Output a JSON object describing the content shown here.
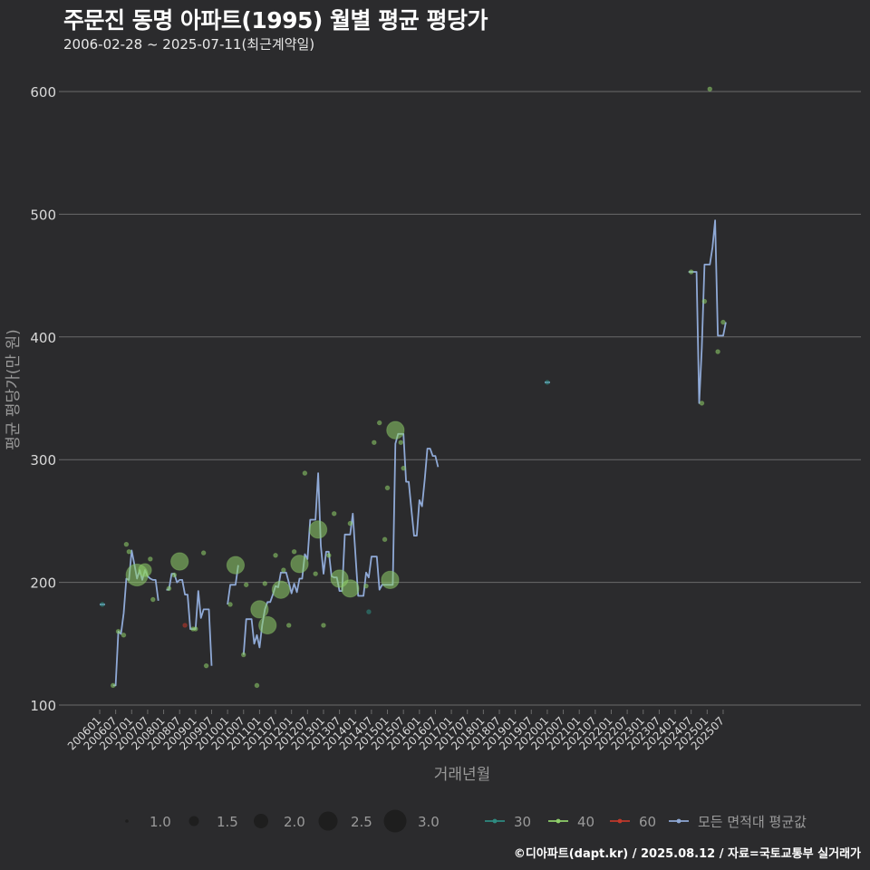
{
  "title": "주문진 동명 아파트(1995) 월별 평균 평당가",
  "subtitle": "2006-02-28 ~ 2025-07-11(최근계약일)",
  "footer": "©디아파트(dapt.kr) / 2025.08.12 / 자료=국토교통부 실거래가",
  "colors": {
    "background": "#2b2b2d",
    "grid": "#6b6b6b",
    "text": "#d9d9d9",
    "axis_title": "#999999",
    "area30": "#2e8b80",
    "area40": "#8fcf6a",
    "area60": "#c0392b",
    "avg_line": "#8fa9d6"
  },
  "chart_data": {
    "type": "line",
    "xlabel": "거래년월",
    "ylabel": "평균 평당가(만 원)",
    "ylim": [
      100,
      620
    ],
    "yticks": [
      100,
      200,
      300,
      400,
      500,
      600
    ],
    "x_start": "2006-01",
    "x_end": "2025-07",
    "xticks": [
      "200601",
      "200607",
      "200701",
      "200707",
      "200801",
      "200807",
      "200901",
      "200907",
      "201001",
      "201007",
      "201101",
      "201107",
      "201201",
      "201207",
      "201301",
      "201307",
      "201401",
      "201407",
      "201501",
      "201507",
      "201601",
      "201607",
      "201701",
      "201707",
      "201801",
      "201807",
      "201901",
      "201907",
      "202001",
      "202007",
      "202101",
      "202107",
      "202201",
      "202207",
      "202301",
      "202307",
      "202401",
      "202407",
      "202501",
      "202507"
    ],
    "series": [
      {
        "name": "30",
        "points": [
          {
            "t": "200602",
            "y": 182,
            "n": 1
          },
          {
            "t": "201406",
            "y": 176,
            "n": 1
          },
          {
            "t": "202001",
            "y": 363,
            "n": 1
          }
        ]
      },
      {
        "name": "40",
        "points": [
          {
            "t": "200606",
            "y": 116,
            "n": 1
          },
          {
            "t": "200608",
            "y": 160,
            "n": 1
          },
          {
            "t": "200610",
            "y": 157,
            "n": 1
          },
          {
            "t": "200611",
            "y": 231,
            "n": 1
          },
          {
            "t": "200612",
            "y": 225,
            "n": 1
          },
          {
            "t": "200703",
            "y": 206,
            "n": 3
          },
          {
            "t": "200706",
            "y": 210,
            "n": 2
          },
          {
            "t": "200708",
            "y": 219,
            "n": 1
          },
          {
            "t": "200709",
            "y": 186,
            "n": 1
          },
          {
            "t": "200803",
            "y": 195,
            "n": 1
          },
          {
            "t": "200805",
            "y": 206,
            "n": 1
          },
          {
            "t": "200807",
            "y": 217,
            "n": 2.5
          },
          {
            "t": "200812",
            "y": 162,
            "n": 1
          },
          {
            "t": "200901",
            "y": 162,
            "n": 1
          },
          {
            "t": "200904",
            "y": 224,
            "n": 1
          },
          {
            "t": "200905",
            "y": 132,
            "n": 1
          },
          {
            "t": "201002",
            "y": 182,
            "n": 1
          },
          {
            "t": "201004",
            "y": 214,
            "n": 2.5
          },
          {
            "t": "201007",
            "y": 141,
            "n": 1
          },
          {
            "t": "201008",
            "y": 198,
            "n": 1
          },
          {
            "t": "201012",
            "y": 116,
            "n": 1
          },
          {
            "t": "201101",
            "y": 178,
            "n": 2.5
          },
          {
            "t": "201103",
            "y": 199,
            "n": 1
          },
          {
            "t": "201104",
            "y": 165,
            "n": 2.5
          },
          {
            "t": "201107",
            "y": 222,
            "n": 1
          },
          {
            "t": "201109",
            "y": 194,
            "n": 2.5
          },
          {
            "t": "201110",
            "y": 210,
            "n": 1
          },
          {
            "t": "201112",
            "y": 165,
            "n": 1
          },
          {
            "t": "201202",
            "y": 225,
            "n": 1
          },
          {
            "t": "201204",
            "y": 215,
            "n": 2.5
          },
          {
            "t": "201206",
            "y": 289,
            "n": 1
          },
          {
            "t": "201210",
            "y": 207,
            "n": 1
          },
          {
            "t": "201211",
            "y": 243,
            "n": 2.5
          },
          {
            "t": "201301",
            "y": 165,
            "n": 1
          },
          {
            "t": "201303",
            "y": 222,
            "n": 1
          },
          {
            "t": "201305",
            "y": 256,
            "n": 1
          },
          {
            "t": "201307",
            "y": 203,
            "n": 2.5
          },
          {
            "t": "201311",
            "y": 248,
            "n": 1
          },
          {
            "t": "201311",
            "y": 195,
            "n": 2.5
          },
          {
            "t": "201405",
            "y": 197,
            "n": 1
          },
          {
            "t": "201408",
            "y": 314,
            "n": 1
          },
          {
            "t": "201410",
            "y": 330,
            "n": 1
          },
          {
            "t": "201412",
            "y": 235,
            "n": 1
          },
          {
            "t": "201501",
            "y": 277,
            "n": 1
          },
          {
            "t": "201502",
            "y": 202,
            "n": 2.5
          },
          {
            "t": "201504",
            "y": 324,
            "n": 2.5
          },
          {
            "t": "201506",
            "y": 314,
            "n": 1
          },
          {
            "t": "201507",
            "y": 293,
            "n": 1
          },
          {
            "t": "202407",
            "y": 453,
            "n": 1
          },
          {
            "t": "202411",
            "y": 346,
            "n": 1
          },
          {
            "t": "202412",
            "y": 429,
            "n": 1
          },
          {
            "t": "202502",
            "y": 602,
            "n": 1
          },
          {
            "t": "202505",
            "y": 388,
            "n": 1
          },
          {
            "t": "202507",
            "y": 412,
            "n": 1
          }
        ]
      },
      {
        "name": "60",
        "points": [
          {
            "t": "200809",
            "y": 165,
            "n": 1
          }
        ]
      },
      {
        "name": "모든 면적대 평균값",
        "segments": [
          [
            [
              "200601",
              182
            ],
            [
              "200603",
              182
            ]
          ],
          [
            [
              "200606",
              116
            ],
            [
              "200607",
              116
            ],
            [
              "200608",
              160
            ],
            [
              "200609",
              158
            ],
            [
              "200610",
              175
            ],
            [
              "200611",
              203
            ],
            [
              "200612",
              202
            ],
            [
              "200701",
              226
            ],
            [
              "200702",
              215
            ],
            [
              "200703",
              203
            ],
            [
              "200704",
              210
            ],
            [
              "200705",
              202
            ],
            [
              "200706",
              210
            ],
            [
              "200707",
              205
            ],
            [
              "200708",
              203
            ],
            [
              "200709",
              202
            ],
            [
              "200710",
              202
            ],
            [
              "200711",
              185
            ]
          ],
          [
            [
              "200802",
              194
            ],
            [
              "200803",
              194
            ],
            [
              "200804",
              207
            ],
            [
              "200805",
              207
            ],
            [
              "200806",
              200
            ],
            [
              "200807",
              202
            ],
            [
              "200808",
              202
            ],
            [
              "200809",
              190
            ],
            [
              "200810",
              190
            ],
            [
              "200811",
              162
            ],
            [
              "200812",
              162
            ],
            [
              "200901",
              162
            ],
            [
              "200902",
              193
            ],
            [
              "200903",
              171
            ],
            [
              "200904",
              178
            ],
            [
              "200905",
              178
            ],
            [
              "200906",
              178
            ],
            [
              "200907",
              132
            ]
          ],
          [
            [
              "201001",
              182
            ],
            [
              "201002",
              198
            ],
            [
              "201003",
              198
            ],
            [
              "201004",
              198
            ],
            [
              "201005",
              214
            ]
          ],
          [
            [
              "201007",
              141
            ],
            [
              "201008",
              170
            ],
            [
              "201009",
              170
            ],
            [
              "201010",
              170
            ],
            [
              "201011",
              150
            ],
            [
              "201012",
              157
            ],
            [
              "201101",
              147
            ],
            [
              "201102",
              165
            ],
            [
              "201103",
              178
            ],
            [
              "201104",
              184
            ],
            [
              "201105",
              184
            ],
            [
              "201106",
              190
            ],
            [
              "201107",
              197
            ],
            [
              "201108",
              196
            ],
            [
              "201109",
              208
            ],
            [
              "201110",
              208
            ],
            [
              "201111",
              208
            ],
            [
              "201112",
              200
            ],
            [
              "201201",
              191
            ],
            [
              "201202",
              199
            ],
            [
              "201203",
              192
            ],
            [
              "201204",
              203
            ],
            [
              "201205",
              203
            ],
            [
              "201206",
              223
            ],
            [
              "201207",
              219
            ],
            [
              "201208",
              251
            ],
            [
              "201209",
              251
            ],
            [
              "201210",
              251
            ],
            [
              "201211",
              289
            ],
            [
              "201212",
              230
            ],
            [
              "201301",
              207
            ],
            [
              "201302",
              225
            ],
            [
              "201303",
              225
            ],
            [
              "201304",
              205
            ],
            [
              "201305",
              204
            ],
            [
              "201306",
              204
            ],
            [
              "201307",
              193
            ],
            [
              "201308",
              193
            ],
            [
              "201309",
              239
            ],
            [
              "201310",
              239
            ],
            [
              "201311",
              239
            ],
            [
              "201312",
              256
            ],
            [
              "201401",
              223
            ],
            [
              "201402",
              189
            ],
            [
              "201403",
              189
            ],
            [
              "201404",
              189
            ],
            [
              "201405",
              208
            ],
            [
              "201406",
              204
            ],
            [
              "201407",
              221
            ],
            [
              "201408",
              221
            ],
            [
              "201409",
              221
            ],
            [
              "201410",
              194
            ],
            [
              "201411",
              198
            ],
            [
              "201412",
              198
            ],
            [
              "201501",
              198
            ],
            [
              "201502",
              198
            ],
            [
              "201503",
              198
            ],
            [
              "201504",
              313
            ],
            [
              "201505",
              321
            ],
            [
              "201506",
              321
            ],
            [
              "201507",
              321
            ],
            [
              "201508",
              282
            ],
            [
              "201509",
              282
            ],
            [
              "201510",
              259
            ],
            [
              "201511",
              238
            ],
            [
              "201512",
              238
            ],
            [
              "201601",
              267
            ],
            [
              "201602",
              262
            ],
            [
              "201603",
              284
            ],
            [
              "201604",
              309
            ],
            [
              "201605",
              309
            ],
            [
              "201606",
              303
            ],
            [
              "201607",
              303
            ],
            [
              "201608",
              294
            ]
          ],
          [
            [
              "201912",
              363
            ],
            [
              "202001",
              363
            ],
            [
              "202002",
              363
            ]
          ],
          [
            [
              "202406",
              453
            ],
            [
              "202407",
              453
            ],
            [
              "202408",
              453
            ],
            [
              "202409",
              453
            ],
            [
              "202410",
              346
            ],
            [
              "202411",
              391
            ],
            [
              "202412",
              459
            ],
            [
              "202501",
              459
            ],
            [
              "202502",
              459
            ],
            [
              "202503",
              473
            ],
            [
              "202504",
              495
            ],
            [
              "202505",
              401
            ],
            [
              "202506",
              401
            ],
            [
              "202507",
              401
            ],
            [
              "202508",
              412
            ]
          ]
        ]
      }
    ],
    "legend": {
      "size_title": "",
      "sizes": [
        "1.0",
        "1.5",
        "2.0",
        "2.5",
        "3.0"
      ],
      "areas": [
        "30",
        "40",
        "60"
      ],
      "avg_label": "모든 면적대 평균값",
      "position": "bottom"
    }
  }
}
